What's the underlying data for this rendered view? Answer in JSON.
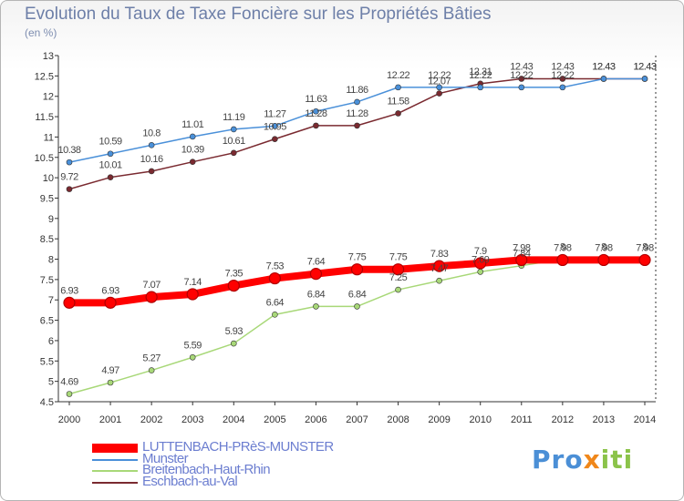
{
  "title": "Evolution du Taux de Taxe Foncière sur les Propriétés Bâties",
  "unit": "(en %)",
  "logo": {
    "part1": "Pro",
    "part2": "x",
    "part3": "iti"
  },
  "chart_data": {
    "type": "line",
    "x": [
      "2000",
      "2001",
      "2002",
      "2003",
      "2004",
      "2005",
      "2006",
      "2007",
      "2008",
      "2009",
      "2010",
      "2011",
      "2012",
      "2013",
      "2014"
    ],
    "ylim": [
      4.5,
      13
    ],
    "yticks": [
      "4.5",
      "5",
      "5.5",
      "6",
      "6.5",
      "7",
      "7.5",
      "8",
      "8.5",
      "9",
      "9.5",
      "10",
      "10.5",
      "11",
      "11.5",
      "12",
      "12.5",
      "13"
    ],
    "grid": false,
    "legend": "bottom-left",
    "series": [
      {
        "name": "LUTTENBACH-PRèS-MUNSTER",
        "color": "#ff0000",
        "values": [
          6.93,
          6.93,
          7.07,
          7.14,
          7.35,
          7.53,
          7.64,
          7.75,
          7.75,
          7.83,
          7.9,
          7.98,
          7.98,
          7.98,
          7.98
        ],
        "labels": [
          "6.93",
          "6.93",
          "7.07",
          "7.14",
          "7.35",
          "7.53",
          "7.64",
          "7.75",
          "7.75",
          "7.83",
          "7.9",
          "7.98",
          "7.98",
          "7.98",
          "7.98"
        ]
      },
      {
        "name": "Munster",
        "color": "#4a90d9",
        "values": [
          10.38,
          10.59,
          10.8,
          11.01,
          11.19,
          11.27,
          11.63,
          11.86,
          12.22,
          12.22,
          12.22,
          12.22,
          12.22,
          12.43,
          12.43
        ],
        "labels": [
          "10.38",
          "10.59",
          "10.8",
          "11.01",
          "11.19",
          "11.27",
          "11.63",
          "11.86",
          "12.22",
          "12.22",
          "12.22",
          "12.22",
          "12.22",
          "12.43",
          "12.43"
        ]
      },
      {
        "name": "Breitenbach-Haut-Rhin",
        "color": "#a8d878",
        "values": [
          4.69,
          4.97,
          5.27,
          5.59,
          5.93,
          6.64,
          6.84,
          6.84,
          7.25,
          7.47,
          7.69,
          7.84,
          8,
          8,
          8
        ],
        "labels": [
          "4.69",
          "4.97",
          "5.27",
          "5.59",
          "5.93",
          "6.64",
          "6.84",
          "6.84",
          "7.25",
          "7.47",
          "7.69",
          "7.84",
          "8",
          "8",
          "8"
        ]
      },
      {
        "name": "Eschbach-au-Val",
        "color": "#7a2a30",
        "values": [
          9.72,
          10.01,
          10.16,
          10.39,
          10.61,
          10.95,
          11.28,
          11.28,
          11.58,
          12.07,
          12.31,
          12.43,
          12.43,
          12.43,
          12.43
        ],
        "labels": [
          "9.72",
          "10.01",
          "10.16",
          "10.39",
          "10.61",
          "10.95",
          "11.28",
          "11.28",
          "11.58",
          "12.07",
          "12.31",
          "12.43",
          "12.43",
          "12.43",
          "12.43"
        ]
      }
    ]
  }
}
